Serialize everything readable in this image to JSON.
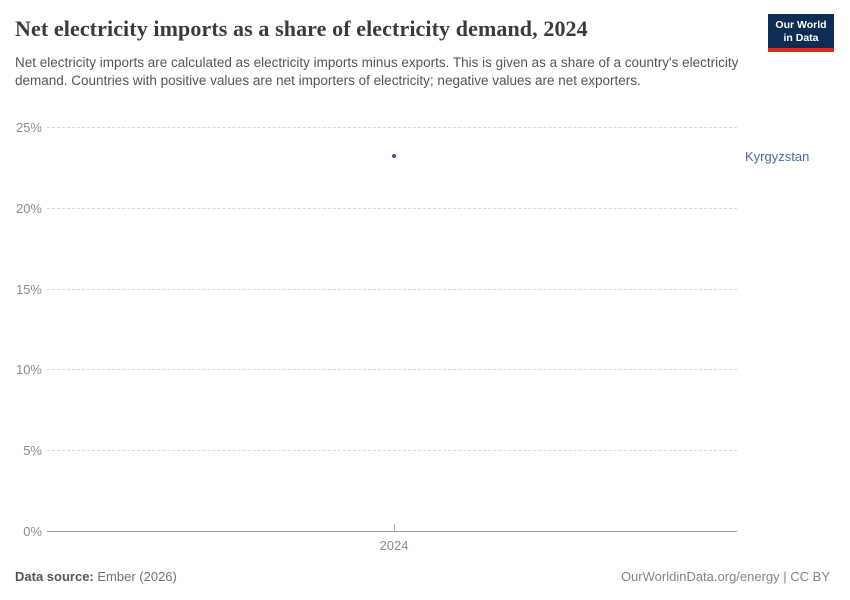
{
  "header": {
    "title": "Net electricity imports as a share of electricity demand, 2024",
    "subtitle": "Net electricity imports are calculated as electricity imports minus exports. This is given as a share of a country's electricity demand. Countries with positive values are net importers of electricity; negative values are net exporters.",
    "logo": {
      "line1": "Our World",
      "line2": "in Data",
      "background_color": "#0d2d55",
      "accent_color": "#dc2a20"
    }
  },
  "chart_data": {
    "type": "scatter",
    "title": "Net electricity imports as a share of electricity demand, 2024",
    "x": [
      2024
    ],
    "xticks": [
      "2024"
    ],
    "yticks": [
      "25%",
      "20%",
      "15%",
      "10%",
      "5%",
      "0%"
    ],
    "ylim": [
      0,
      25
    ],
    "ytick_step": 5,
    "xlabel": "",
    "ylabel": "",
    "grid": "horizontal-dashed",
    "legend_position": "entity-label-right",
    "series": [
      {
        "name": "Kyrgyzstan",
        "x": [
          2024
        ],
        "values": [
          23.2
        ],
        "unit": "%",
        "color": "#3b5a92",
        "label_color": "#4c6a9c"
      }
    ]
  },
  "footer": {
    "source_label": "Data source:",
    "source_value": "Ember (2026)",
    "credit": "OurWorldinData.org/energy | CC BY"
  }
}
